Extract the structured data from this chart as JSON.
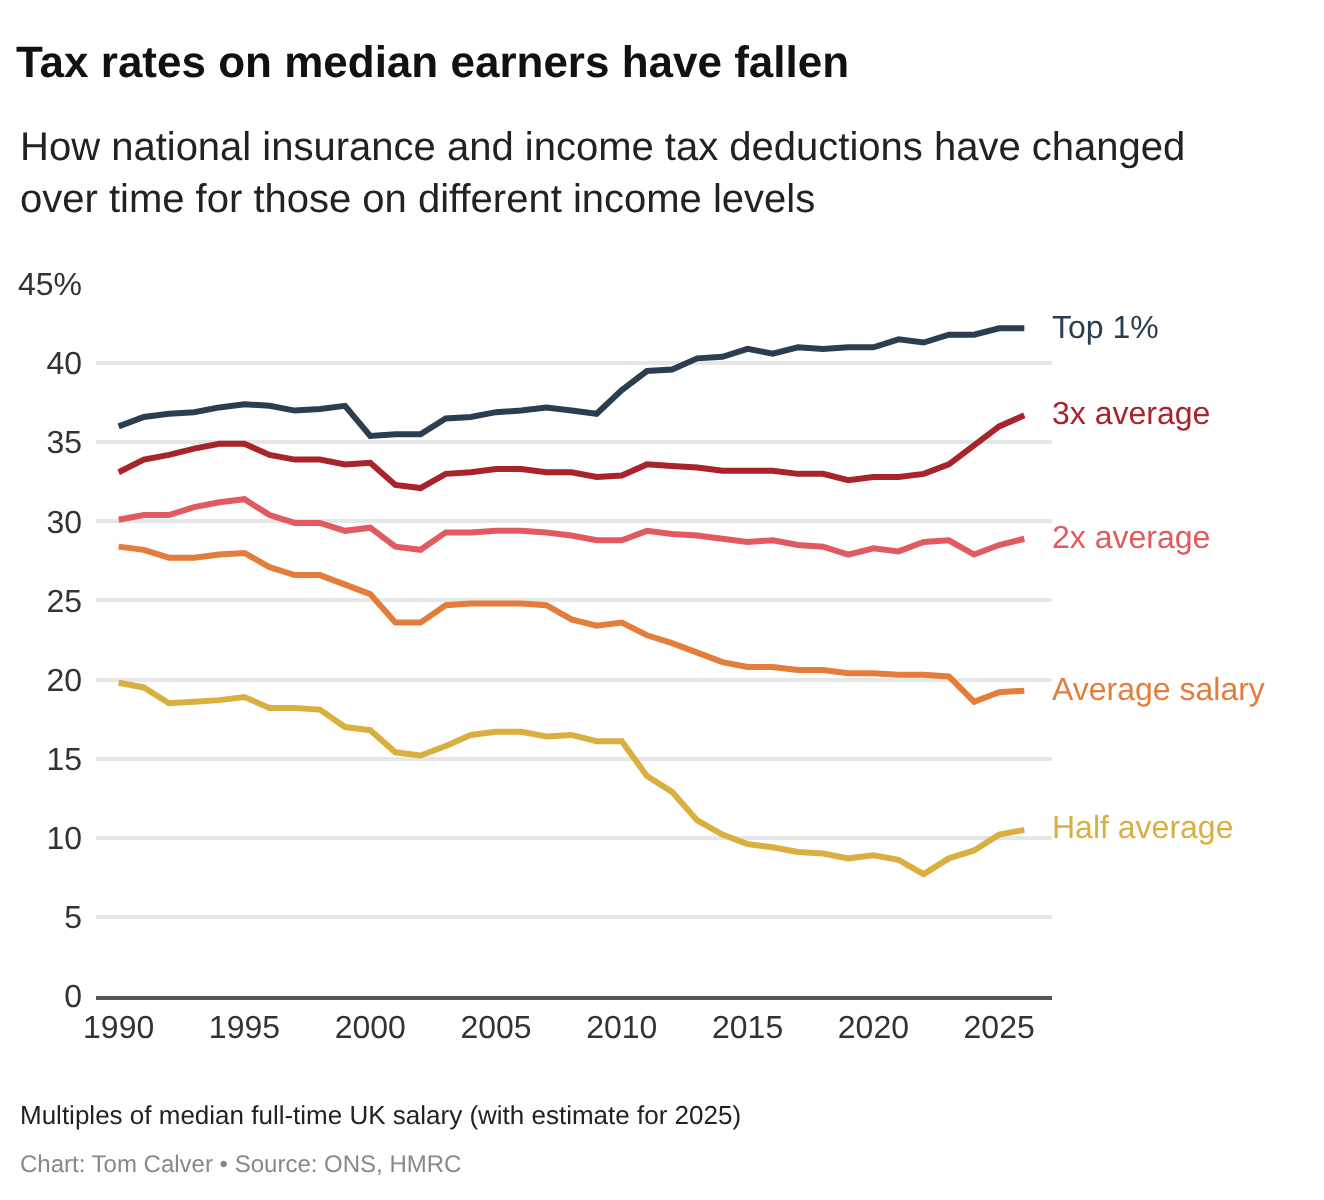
{
  "chart_data": {
    "type": "line",
    "title": "Tax rates on median earners have fallen",
    "subtitle": "How national insurance and income tax deductions have changed over time for those on different income levels",
    "x": [
      1990,
      1991,
      1992,
      1993,
      1994,
      1995,
      1996,
      1997,
      1998,
      1999,
      2000,
      2001,
      2002,
      2003,
      2004,
      2005,
      2006,
      2007,
      2008,
      2009,
      2010,
      2011,
      2012,
      2013,
      2014,
      2015,
      2016,
      2017,
      2018,
      2019,
      2020,
      2021,
      2022,
      2023,
      2024,
      2025,
      2026
    ],
    "series": [
      {
        "name": "Top 1%",
        "color": "#2b3e50",
        "values": [
          36.0,
          36.6,
          36.8,
          36.9,
          37.2,
          37.4,
          37.3,
          37.0,
          37.1,
          37.3,
          35.4,
          35.5,
          35.5,
          36.5,
          36.6,
          36.9,
          37.0,
          37.2,
          37.0,
          36.8,
          38.3,
          39.5,
          39.6,
          40.3,
          40.4,
          40.9,
          40.6,
          41.0,
          40.9,
          41.0,
          41.0,
          41.5,
          41.3,
          41.8,
          41.8,
          42.2,
          42.2
        ]
      },
      {
        "name": "3x average",
        "color": "#a8232a",
        "values": [
          33.1,
          33.9,
          34.2,
          34.6,
          34.9,
          34.9,
          34.2,
          33.9,
          33.9,
          33.6,
          33.7,
          32.3,
          32.1,
          33.0,
          33.1,
          33.3,
          33.3,
          33.1,
          33.1,
          32.8,
          32.9,
          33.6,
          33.5,
          33.4,
          33.2,
          33.2,
          33.2,
          33.0,
          33.0,
          32.6,
          32.8,
          32.8,
          33.0,
          33.6,
          34.8,
          36.0,
          36.7
        ]
      },
      {
        "name": "2x average",
        "color": "#e05a5f",
        "values": [
          30.1,
          30.4,
          30.4,
          30.9,
          31.2,
          31.4,
          30.4,
          29.9,
          29.9,
          29.4,
          29.6,
          28.4,
          28.2,
          29.3,
          29.3,
          29.4,
          29.4,
          29.3,
          29.1,
          28.8,
          28.8,
          29.4,
          29.2,
          29.1,
          28.9,
          28.7,
          28.8,
          28.5,
          28.4,
          27.9,
          28.3,
          28.1,
          28.7,
          28.8,
          27.9,
          28.5,
          28.9
        ]
      },
      {
        "name": "Average salary",
        "color": "#e47d3a",
        "values": [
          28.4,
          28.2,
          27.7,
          27.7,
          27.9,
          28.0,
          27.1,
          26.6,
          26.6,
          26.0,
          25.4,
          23.6,
          23.6,
          24.7,
          24.8,
          24.8,
          24.8,
          24.7,
          23.8,
          23.4,
          23.6,
          22.8,
          22.3,
          21.7,
          21.1,
          20.8,
          20.8,
          20.6,
          20.6,
          20.4,
          20.4,
          20.3,
          20.3,
          20.2,
          18.6,
          19.2,
          19.3
        ]
      },
      {
        "name": "Half average",
        "color": "#d9b040",
        "values": [
          19.8,
          19.5,
          18.5,
          18.6,
          18.7,
          18.9,
          18.2,
          18.2,
          18.1,
          17.0,
          16.8,
          15.4,
          15.2,
          15.8,
          16.5,
          16.7,
          16.7,
          16.4,
          16.5,
          16.1,
          16.1,
          13.9,
          12.9,
          11.1,
          10.2,
          9.6,
          9.4,
          9.1,
          9.0,
          8.7,
          8.9,
          8.6,
          7.7,
          8.7,
          9.2,
          10.2,
          10.5
        ]
      }
    ],
    "xlim": [
      1989.1,
      2027.1
    ],
    "xticks": [
      1990,
      1995,
      2000,
      2005,
      2010,
      2015,
      2020,
      2025
    ],
    "ylim": [
      0,
      45
    ],
    "yticks": [
      0,
      5,
      10,
      15,
      20,
      25,
      30,
      35,
      40,
      {
        "value": 45,
        "label": "45%"
      }
    ],
    "grid": "y",
    "annotations": [
      "Multiples of median full-time UK salary (with estimate for 2025)",
      "Chart: Tom Calver • Source: ONS, HMRC"
    ]
  }
}
